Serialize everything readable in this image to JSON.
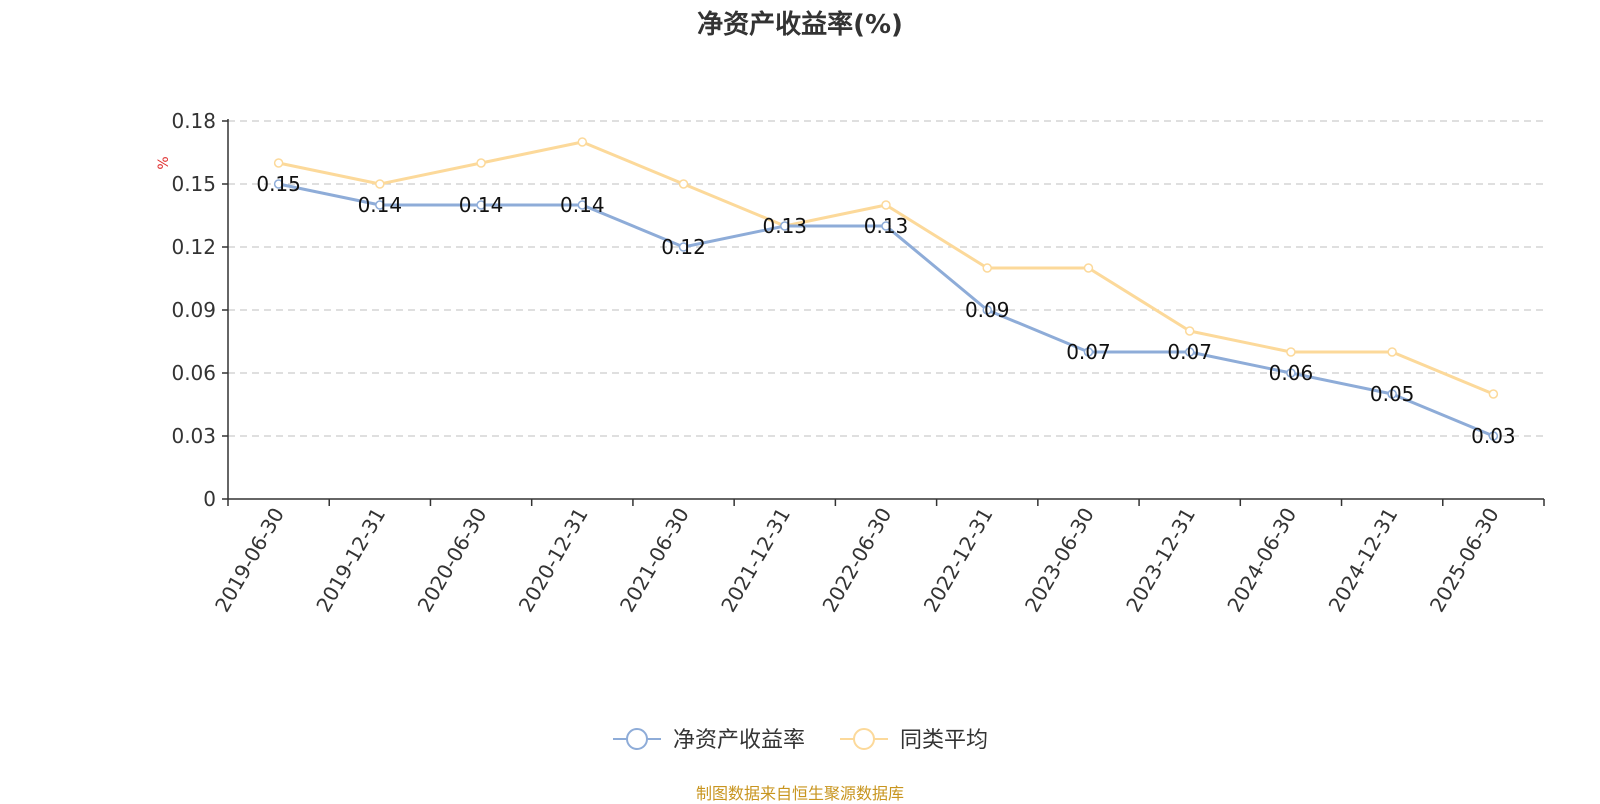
{
  "chart_data": {
    "type": "line",
    "title": "净资产收益率(%)",
    "ylabel": "%",
    "xlabel": "",
    "categories": [
      "2019-06-30",
      "2019-12-31",
      "2020-06-30",
      "2020-12-31",
      "2021-06-30",
      "2021-12-31",
      "2022-06-30",
      "2022-12-31",
      "2023-06-30",
      "2023-12-31",
      "2024-06-30",
      "2024-12-31",
      "2025-06-30"
    ],
    "series": [
      {
        "name": "净资产收益率",
        "color": "#8eacd8",
        "show_labels": true,
        "values": [
          0.15,
          0.14,
          0.14,
          0.14,
          0.12,
          0.13,
          0.13,
          0.09,
          0.07,
          0.07,
          0.06,
          0.05,
          0.03
        ]
      },
      {
        "name": "同类平均",
        "color": "#fcd99a",
        "show_labels": false,
        "values": [
          0.16,
          0.15,
          0.16,
          0.17,
          0.15,
          0.13,
          0.14,
          0.11,
          0.11,
          0.08,
          0.07,
          0.07,
          0.05
        ]
      }
    ],
    "ylim": [
      0,
      0.18
    ],
    "yticks": [
      "0",
      "0.03",
      "0.06",
      "0.09",
      "0.12",
      "0.15",
      "0.18"
    ],
    "grid": true,
    "legend_position": "bottom-center",
    "ylabel_color": "#e03030"
  },
  "footer": {
    "source": "制图数据来自恒生聚源数据库"
  }
}
